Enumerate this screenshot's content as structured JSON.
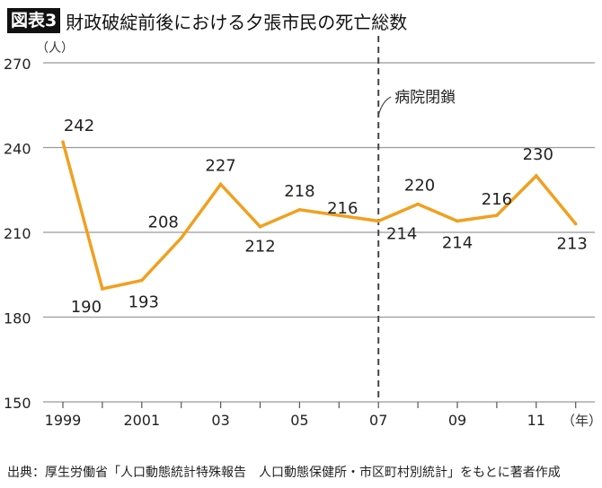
{
  "header": {
    "badge": "図表3",
    "title": "財政破綻前後における夕張市民の死亡総数"
  },
  "source": "出典：厚生労働省「人口動態統計特殊報告　人口動態保健所・市区町村別統計」をもとに著者作成",
  "chart_data": {
    "type": "line",
    "title": "財政破綻前後における夕張市民の死亡総数",
    "x": [
      1999,
      2000,
      2001,
      2002,
      2003,
      2004,
      2005,
      2006,
      2007,
      2008,
      2009,
      2010,
      2011,
      2012
    ],
    "x_tick_labels": [
      {
        "x": 1999,
        "label": "1999"
      },
      {
        "x": 2001,
        "label": "2001"
      },
      {
        "x": 2003,
        "label": "03"
      },
      {
        "x": 2005,
        "label": "05"
      },
      {
        "x": 2007,
        "label": "07"
      },
      {
        "x": 2009,
        "label": "09"
      },
      {
        "x": 2011,
        "label": "11"
      }
    ],
    "xlabel": "（年）",
    "ylabel": "（人）",
    "ylim": [
      150,
      270
    ],
    "yticks": [
      150,
      180,
      210,
      240,
      270
    ],
    "grid": true,
    "series": [
      {
        "values": [
          242,
          190,
          193,
          208,
          227,
          212,
          218,
          216,
          214,
          220,
          214,
          216,
          230,
          213
        ],
        "color": "#f0a020"
      }
    ],
    "annotations": [
      {
        "x": 2007,
        "label": "病院閉鎖",
        "style": "dashed-vertical-line"
      }
    ]
  }
}
